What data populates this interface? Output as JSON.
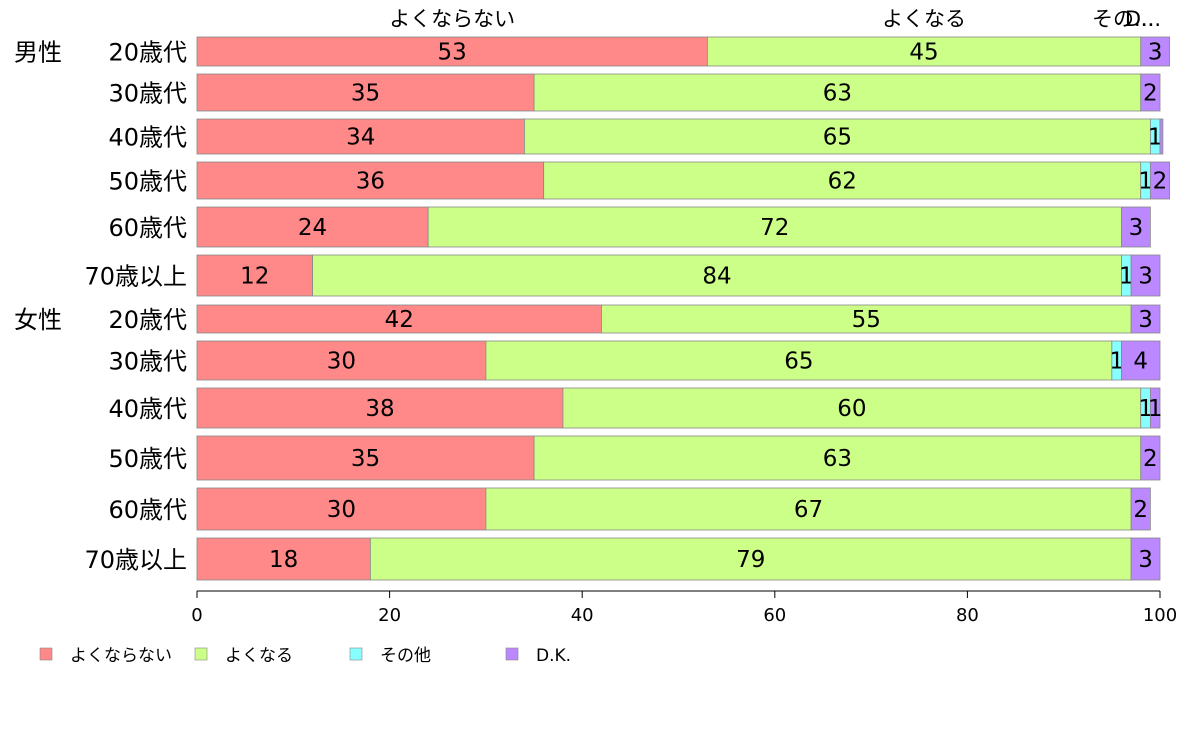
{
  "chart_data": {
    "type": "bar",
    "orientation": "horizontal",
    "stacked": true,
    "xlim": [
      0,
      100
    ],
    "x_ticks": [
      "0",
      "20",
      "40",
      "60",
      "80",
      "100"
    ],
    "groups": [
      {
        "label": "男性",
        "start_row": 0
      },
      {
        "label": "女性",
        "start_row": 6
      }
    ],
    "categories": [
      "20歳代",
      "30歳代",
      "40歳代",
      "50歳代",
      "60歳代",
      "70歳以上",
      "20歳代",
      "30歳代",
      "40歳代",
      "50歳代",
      "60歳代",
      "70歳以上"
    ],
    "series": [
      {
        "name": "よくならない",
        "color": "#ff8888",
        "values": [
          53,
          35,
          34,
          36,
          24,
          12,
          42,
          30,
          38,
          35,
          30,
          18
        ],
        "labels": [
          "53",
          "35",
          "34",
          "36",
          "24",
          "12",
          "42",
          "30",
          "38",
          "35",
          "30",
          "18"
        ]
      },
      {
        "name": "よくなる",
        "color": "#ccff88",
        "values": [
          45,
          63,
          65,
          62,
          72,
          84,
          55,
          65,
          60,
          63,
          67,
          79
        ],
        "labels": [
          "45",
          "63",
          "65",
          "62",
          "72",
          "84",
          "55",
          "65",
          "60",
          "63",
          "67",
          "79"
        ]
      },
      {
        "name": "その他",
        "color": "#88ffff",
        "values": [
          0,
          0,
          1,
          1,
          0,
          1,
          0,
          1,
          1,
          0,
          0,
          0
        ],
        "labels": [
          "",
          "",
          "1",
          "1",
          "",
          "1",
          "",
          "1",
          "1",
          "",
          "",
          ""
        ]
      },
      {
        "name": "D.K.",
        "color": "#bb88ff",
        "values": [
          3,
          2,
          0.3,
          2,
          3,
          3,
          3,
          4,
          1,
          2,
          2,
          3
        ],
        "labels": [
          "3",
          "2",
          "",
          "2",
          "3",
          "3",
          "3",
          "4",
          "1",
          "2",
          "2",
          "3"
        ]
      }
    ],
    "top_headers": [
      "よくならない",
      "よくなる",
      "その...",
      "D..."
    ],
    "legend_position": "bottom-left",
    "grid": false
  }
}
